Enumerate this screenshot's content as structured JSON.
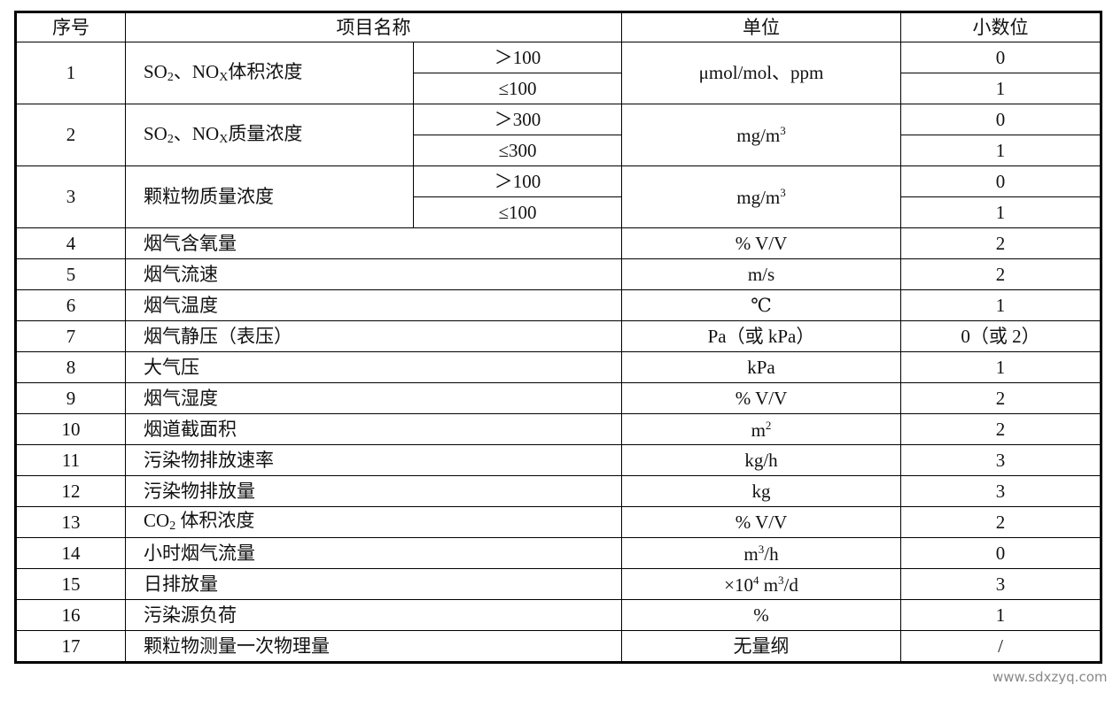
{
  "headers": {
    "index": "序号",
    "item": "项目名称",
    "unit": "单位",
    "decimals": "小数位"
  },
  "grouped_rows": [
    {
      "index": "1",
      "name_pre": "SO",
      "name_sub1": "2",
      "name_mid": "、NO",
      "name_sub2": "X",
      "name_post": "体积浓度",
      "unit": "μmol/mol、ppm",
      "unit_sup": "",
      "ranges": [
        {
          "range": "＞100",
          "decimals": "0"
        },
        {
          "range": "≤100",
          "decimals": "1"
        }
      ]
    },
    {
      "index": "2",
      "name_pre": "SO",
      "name_sub1": "2",
      "name_mid": "、NO",
      "name_sub2": "X",
      "name_post": "质量浓度",
      "unit": "mg/m",
      "unit_sup": "3",
      "ranges": [
        {
          "range": "＞300",
          "decimals": "0"
        },
        {
          "range": "≤300",
          "decimals": "1"
        }
      ]
    },
    {
      "index": "3",
      "name_pre": "颗粒物质量浓度",
      "name_sub1": "",
      "name_mid": "",
      "name_sub2": "",
      "name_post": "",
      "unit": "mg/m",
      "unit_sup": "3",
      "ranges": [
        {
          "range": "＞100",
          "decimals": "0"
        },
        {
          "range": "≤100",
          "decimals": "1"
        }
      ]
    }
  ],
  "rows": [
    {
      "index": "4",
      "name": "烟气含氧量",
      "unit": "% V/V",
      "decimals": "2"
    },
    {
      "index": "5",
      "name": "烟气流速",
      "unit": "m/s",
      "decimals": "2"
    },
    {
      "index": "6",
      "name": "烟气温度",
      "unit": "℃",
      "decimals": "1"
    },
    {
      "index": "7",
      "name": "烟气静压（表压）",
      "unit": "Pa（或 kPa）",
      "decimals": "0（或 2）"
    },
    {
      "index": "8",
      "name": "大气压",
      "unit": "kPa",
      "decimals": "1"
    },
    {
      "index": "9",
      "name": "烟气湿度",
      "unit": "% V/V",
      "decimals": "2"
    },
    {
      "index": "10",
      "name": "烟道截面积",
      "unit": "m<sup>2</sup>",
      "decimals": "2"
    },
    {
      "index": "11",
      "name": "污染物排放速率",
      "unit": "kg/h",
      "decimals": "3"
    },
    {
      "index": "12",
      "name": "污染物排放量",
      "unit": "kg",
      "decimals": "3"
    },
    {
      "index": "13",
      "name": "CO<sub>2</sub> 体积浓度",
      "unit": "% V/V",
      "decimals": "2"
    },
    {
      "index": "14",
      "name": "小时烟气流量",
      "unit": "m<sup>3</sup>/h",
      "decimals": "0"
    },
    {
      "index": "15",
      "name": "日排放量",
      "unit": "×10<sup>4</sup> m<sup>3</sup>/d",
      "decimals": "3"
    },
    {
      "index": "16",
      "name": "污染源负荷",
      "unit": "%",
      "decimals": "1"
    },
    {
      "index": "17",
      "name": "颗粒物测量一次物理量",
      "unit": "无量纲",
      "decimals": "/"
    }
  ],
  "watermark": "www.sdxzyq.com"
}
